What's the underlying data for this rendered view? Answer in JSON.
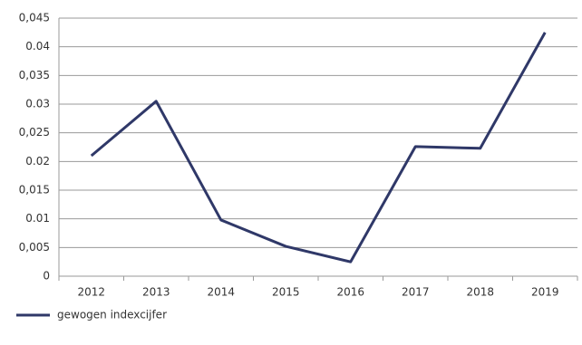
{
  "chart_data": {
    "type": "line",
    "categories": [
      "2012",
      "2013",
      "2014",
      "2015",
      "2016",
      "2017",
      "2018",
      "2019"
    ],
    "series": [
      {
        "name": "gewogen indexcijfer",
        "color": "#2f3868",
        "values": [
          0.021,
          0.0305,
          0.0098,
          0.0052,
          0.0025,
          0.0226,
          0.0223,
          0.0425
        ]
      }
    ],
    "ylim": [
      0,
      0.045
    ],
    "yticks": [
      0,
      {
        "value": 0.005,
        "label": "0,005"
      },
      0.01,
      {
        "value": 0.015,
        "label": "0,015"
      },
      0.02,
      {
        "value": 0.025,
        "label": "0,025"
      },
      0.03,
      {
        "value": 0.035,
        "label": "0,035"
      },
      0.04,
      {
        "value": 0.045,
        "label": "0,045"
      }
    ],
    "grid": true,
    "legend": "bottom-left"
  }
}
